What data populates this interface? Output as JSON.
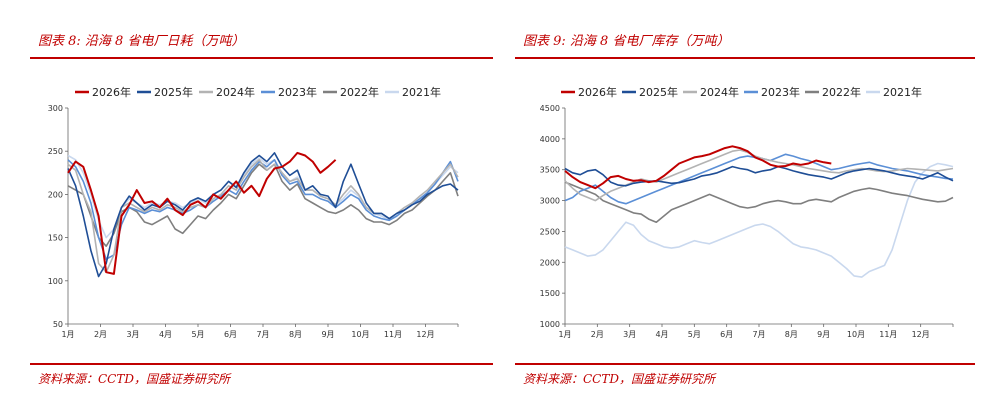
{
  "panels": [
    {
      "title": "图表 8:  沿海 8 省电厂日耗（万吨）",
      "source": "资料来源：CCTD，国盛证券研究所",
      "chart_data": {
        "type": "line",
        "title": "沿海8省电厂日耗（万吨）",
        "ylim": [
          50,
          300
        ],
        "yticks": [
          50,
          100,
          150,
          200,
          250,
          300
        ],
        "x_unit": "week_of_year",
        "xticks": [
          "1月",
          "2月",
          "3月",
          "4月",
          "5月",
          "6月",
          "7月",
          "8月",
          "9月",
          "10月",
          "11月",
          "12月"
        ],
        "grid": false,
        "legend": "top",
        "series": [
          {
            "name": "2026年",
            "color": "#c00000",
            "values": [
              225,
              238,
              232,
              205,
              175,
              110,
              108,
              175,
              188,
              205,
              190,
              192,
              185,
              195,
              182,
              176,
              188,
              192,
              185,
              200,
              195,
              205,
              215,
              202,
              210,
              198,
              218,
              230,
              232,
              238,
              248,
              245,
              238,
              225,
              232,
              240
            ]
          },
          {
            "name": "2025年",
            "color": "#1f4e96",
            "values": [
              230,
              210,
              175,
              135,
              105,
              120,
              160,
              185,
              198,
              190,
              182,
              188,
              185,
              192,
              188,
              182,
              192,
              196,
              192,
              200,
              205,
              215,
              208,
              225,
              238,
              245,
              238,
              248,
              232,
              222,
              228,
              205,
              210,
              200,
              198,
              185,
              215,
              235,
              212,
              190,
              178,
              178,
              172,
              178,
              182,
              188,
              192,
              200,
              205,
              210,
              212,
              205
            ]
          },
          {
            "name": "2024年",
            "color": "#b3b3b3",
            "values": [
              235,
              228,
              200,
              180,
              120,
              110,
              130,
              185,
              190,
              185,
              180,
              185,
              182,
              188,
              185,
              180,
              185,
              188,
              185,
              195,
              200,
              210,
              205,
              220,
              232,
              240,
              228,
              235,
              225,
              215,
              218,
              205,
              205,
              198,
              195,
              188,
              200,
              210,
              200,
              185,
              178,
              178,
              172,
              178,
              185,
              190,
              198,
              205,
              215,
              225,
              235,
              220
            ]
          },
          {
            "name": "2023年",
            "color": "#5b8fd6",
            "values": [
              240,
              232,
              215,
              190,
              150,
              125,
              130,
              165,
              185,
              182,
              178,
              182,
              180,
              185,
              182,
              178,
              182,
              188,
              185,
              192,
              198,
              205,
              200,
              215,
              228,
              238,
              232,
              240,
              222,
              212,
              215,
              200,
              200,
              195,
              192,
              185,
              192,
              200,
              195,
              182,
              175,
              172,
              170,
              175,
              182,
              188,
              195,
              202,
              212,
              225,
              238,
              215
            ]
          },
          {
            "name": "2022年",
            "color": "#7f7f7f",
            "values": [
              210,
              205,
              200,
              175,
              150,
              140,
              155,
              180,
              185,
              180,
              168,
              165,
              170,
              175,
              160,
              155,
              165,
              175,
              172,
              182,
              190,
              200,
              195,
              210,
              225,
              235,
              228,
              235,
              215,
              205,
              212,
              195,
              190,
              185,
              180,
              178,
              182,
              188,
              182,
              172,
              168,
              168,
              165,
              170,
              178,
              182,
              190,
              198,
              205,
              215,
              225,
              198
            ]
          },
          {
            "name": "2021年",
            "color": "#c9d8ee",
            "values": [
              245,
              240,
              225,
              200,
              170,
              150,
              160,
              185,
              195,
              190,
              185,
              190,
              188,
              192,
              190,
              185,
              190,
              195,
              190,
              200,
              205,
              215,
              210,
              222,
              235,
              242,
              235,
              240,
              225,
              215,
              220,
              205,
              205,
              198,
              195,
              188,
              195,
              205,
              198,
              185,
              178,
              175,
              170,
              175,
              182,
              188,
              195,
              202,
              212,
              222,
              232,
              225
            ]
          }
        ]
      }
    },
    {
      "title": "图表 9:  沿海 8 省电厂库存（万吨）",
      "source": "资料来源：CCTD，国盛证券研究所",
      "chart_data": {
        "type": "line",
        "title": "沿海8省电厂库存（万吨）",
        "ylim": [
          1000,
          4500
        ],
        "yticks": [
          1000,
          1500,
          2000,
          2500,
          3000,
          3500,
          4000,
          4500
        ],
        "x_unit": "week_of_year",
        "xticks": [
          "1月",
          "2月",
          "3月",
          "4月",
          "5月",
          "6月",
          "7月",
          "8月",
          "9月",
          "10月",
          "11月",
          "12月"
        ],
        "grid": false,
        "legend": "top",
        "series": [
          {
            "name": "2026年",
            "color": "#c00000",
            "values": [
              3480,
              3380,
              3300,
              3250,
              3200,
              3280,
              3380,
              3400,
              3350,
              3320,
              3330,
              3300,
              3320,
              3400,
              3500,
              3600,
              3650,
              3700,
              3720,
              3750,
              3800,
              3850,
              3880,
              3850,
              3800,
              3700,
              3650,
              3580,
              3550,
              3560,
              3600,
              3580,
              3600,
              3650,
              3620,
              3600
            ]
          },
          {
            "name": "2025年",
            "color": "#1f4e96",
            "values": [
              3520,
              3450,
              3420,
              3480,
              3500,
              3420,
              3300,
              3250,
              3240,
              3280,
              3300,
              3310,
              3320,
              3300,
              3280,
              3290,
              3320,
              3350,
              3400,
              3420,
              3450,
              3500,
              3550,
              3520,
              3500,
              3450,
              3480,
              3500,
              3550,
              3520,
              3480,
              3450,
              3420,
              3400,
              3380,
              3350,
              3400,
              3450,
              3480,
              3500,
              3520,
              3500,
              3480,
              3450,
              3420,
              3400,
              3380,
              3350,
              3400,
              3450,
              3380,
              3320
            ]
          },
          {
            "name": "2024年",
            "color": "#b3b3b3",
            "values": [
              3320,
              3200,
              3100,
              3050,
              3000,
              3080,
              3150,
              3200,
              3250,
              3300,
              3350,
              3320,
              3300,
              3350,
              3400,
              3450,
              3500,
              3550,
              3600,
              3650,
              3700,
              3750,
              3800,
              3820,
              3780,
              3720,
              3680,
              3650,
              3620,
              3600,
              3580,
              3550,
              3520,
              3500,
              3480,
              3460,
              3450,
              3480,
              3500,
              3520,
              3500,
              3480,
              3470,
              3480,
              3500,
              3520,
              3510,
              3500,
              3490,
              3480,
              3500,
              3520
            ]
          },
          {
            "name": "2023年",
            "color": "#5b8fd6",
            "values": [
              3000,
              3050,
              3150,
              3200,
              3250,
              3150,
              3050,
              2980,
              2950,
              3000,
              3050,
              3100,
              3150,
              3200,
              3250,
              3300,
              3350,
              3400,
              3450,
              3500,
              3550,
              3600,
              3650,
              3700,
              3720,
              3700,
              3680,
              3650,
              3700,
              3750,
              3720,
              3680,
              3650,
              3600,
              3550,
              3500,
              3520,
              3550,
              3580,
              3600,
              3620,
              3580,
              3550,
              3520,
              3500,
              3480,
              3450,
              3420,
              3400,
              3380,
              3360,
              3350
            ]
          },
          {
            "name": "2022年",
            "color": "#7f7f7f",
            "values": [
              3300,
              3250,
              3200,
              3150,
              3100,
              3000,
              2950,
              2900,
              2850,
              2800,
              2780,
              2700,
              2650,
              2750,
              2850,
              2900,
              2950,
              3000,
              3050,
              3100,
              3050,
              3000,
              2950,
              2900,
              2880,
              2900,
              2950,
              2980,
              3000,
              2980,
              2950,
              2950,
              3000,
              3020,
              3000,
              2980,
              3050,
              3100,
              3150,
              3180,
              3200,
              3180,
              3150,
              3120,
              3100,
              3080,
              3050,
              3020,
              3000,
              2980,
              2990,
              3050
            ]
          },
          {
            "name": "2021年",
            "color": "#c9d8ee",
            "values": [
              2250,
              2200,
              2150,
              2100,
              2120,
              2200,
              2350,
              2500,
              2650,
              2600,
              2450,
              2350,
              2300,
              2250,
              2230,
              2250,
              2300,
              2350,
              2320,
              2300,
              2350,
              2400,
              2450,
              2500,
              2550,
              2600,
              2620,
              2580,
              2500,
              2400,
              2300,
              2250,
              2230,
              2200,
              2150,
              2100,
              2000,
              1900,
              1780,
              1760,
              1850,
              1900,
              1950,
              2200,
              2600,
              3000,
              3300,
              3450,
              3550,
              3600,
              3580,
              3550
            ]
          }
        ]
      }
    }
  ]
}
